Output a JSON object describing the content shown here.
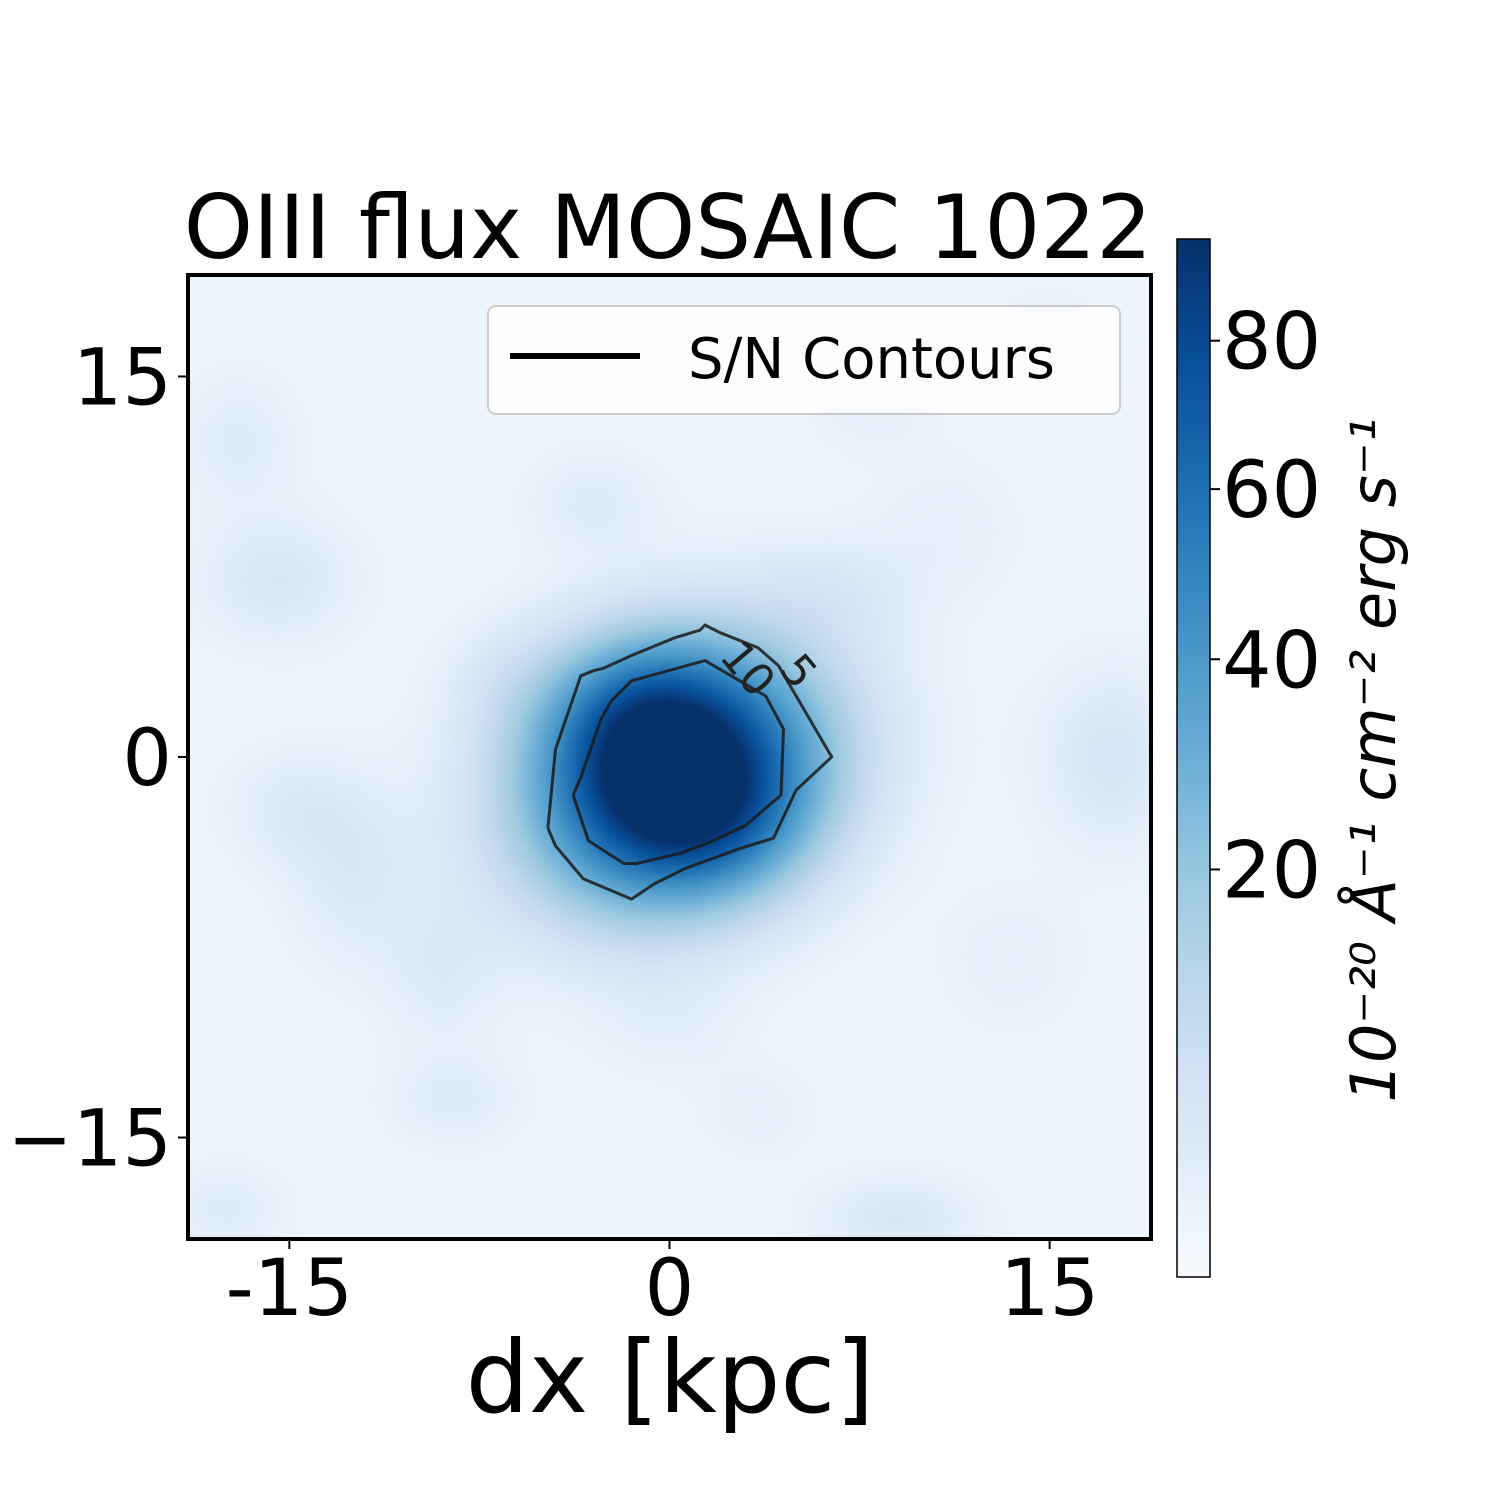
{
  "chart_data": {
    "type": "heatmap",
    "title": "OIII flux MOSAIC 1022",
    "xlabel": "dx [kpc]",
    "ylabel": "",
    "xlim": [
      -19,
      19
    ],
    "ylim": [
      -19,
      19
    ],
    "x_ticks": [
      -15,
      0,
      15
    ],
    "x_tick_labels": [
      "-15",
      "0",
      "15"
    ],
    "y_ticks": [
      -15,
      0,
      15
    ],
    "y_tick_labels": [
      "−15",
      "0",
      "15"
    ],
    "colormap": "Blues",
    "colorbar": {
      "label": "10⁻²⁰ Å⁻¹ cm⁻² erg s⁻¹",
      "ticks": [
        20,
        40,
        60,
        80
      ],
      "tick_labels": [
        "20",
        "40",
        "60",
        "80"
      ],
      "range": [
        0,
        95
      ],
      "scale": "power-norm"
    },
    "peak": {
      "x": 0.3,
      "y": -0.8,
      "value": 95
    },
    "legend": {
      "entries": [
        "S/N Contours"
      ],
      "placement": "upper-right"
    },
    "contours": [
      {
        "level": "5",
        "points": [
          [
            -4.8,
            -2.8
          ],
          [
            -4.5,
            0.3
          ],
          [
            -3.5,
            3.2
          ],
          [
            -3.0,
            3.4
          ],
          [
            -2.6,
            3.5
          ],
          [
            -1.5,
            4.0
          ],
          [
            0.2,
            4.7
          ],
          [
            1.2,
            5.0
          ],
          [
            1.4,
            5.2
          ],
          [
            2.0,
            4.9
          ],
          [
            3.5,
            4.3
          ],
          [
            4.3,
            3.6
          ],
          [
            6.4,
            0.0
          ],
          [
            5.0,
            -1.3
          ],
          [
            4.1,
            -3.2
          ],
          [
            2.8,
            -3.6
          ],
          [
            0.6,
            -4.4
          ],
          [
            -0.6,
            -5.0
          ],
          [
            -1.5,
            -5.6
          ],
          [
            -3.4,
            -4.8
          ],
          [
            -4.5,
            -3.5
          ],
          [
            -4.8,
            -2.8
          ]
        ]
      },
      {
        "level": "10",
        "points": [
          [
            -3.8,
            -1.5
          ],
          [
            -3.2,
            -3.3
          ],
          [
            -1.8,
            -4.2
          ],
          [
            -1.3,
            -4.2
          ],
          [
            0.4,
            -3.8
          ],
          [
            1.5,
            -3.4
          ],
          [
            3.0,
            -2.7
          ],
          [
            4.4,
            -1.5
          ],
          [
            4.5,
            1.1
          ],
          [
            3.8,
            2.4
          ],
          [
            1.4,
            3.8
          ],
          [
            -1.5,
            3.0
          ],
          [
            -2.3,
            2.2
          ],
          [
            -2.7,
            1.5
          ],
          [
            -3.5,
            -0.8
          ],
          [
            -3.8,
            -1.5
          ]
        ]
      }
    ],
    "contour_labels": [
      {
        "text": "10",
        "x": 3.0,
        "y": 3.4
      },
      {
        "text": "5",
        "x": 5.0,
        "y": 3.3
      }
    ],
    "blobs": [
      [
        0.3,
        -0.8,
        4.0,
        3.2,
        -25,
        1.0
      ],
      [
        -1.2,
        1.5,
        2.6,
        2.2,
        0,
        0.35
      ],
      [
        1.4,
        -2.5,
        2.6,
        2.0,
        0,
        0.25
      ],
      [
        -15.5,
        7.0,
        2.2,
        1.8,
        0,
        0.07
      ],
      [
        -12.5,
        -4.5,
        1.8,
        2.6,
        0,
        0.06
      ],
      [
        -9.0,
        -8.5,
        1.6,
        2.0,
        0,
        0.05
      ],
      [
        -15.0,
        -2.0,
        1.8,
        1.6,
        0,
        0.05
      ],
      [
        -17.0,
        12.5,
        1.6,
        1.8,
        0,
        0.05
      ],
      [
        -3.0,
        10.0,
        1.8,
        1.4,
        0,
        0.05
      ],
      [
        6.5,
        6.5,
        2.2,
        1.5,
        0,
        0.05
      ],
      [
        17.5,
        0.0,
        2.0,
        2.5,
        0,
        0.08
      ],
      [
        9.0,
        -18.2,
        2.2,
        1.2,
        0,
        0.07
      ],
      [
        -8.5,
        -13.5,
        1.8,
        1.3,
        0,
        0.05
      ],
      [
        -17.5,
        -17.8,
        1.6,
        1.2,
        0,
        0.05
      ],
      [
        3.5,
        -14.0,
        1.6,
        1.3,
        0,
        0.03
      ],
      [
        -6.5,
        3.0,
        1.6,
        1.6,
        0,
        0.04
      ],
      [
        11.0,
        9.0,
        2.0,
        2.0,
        0,
        0.03
      ],
      [
        13.5,
        -8.0,
        2.0,
        2.0,
        0,
        0.03
      ],
      [
        -4.0,
        16.0,
        2.0,
        1.2,
        0,
        0.03
      ],
      [
        8.0,
        14.0,
        1.8,
        1.5,
        0,
        0.03
      ],
      [
        0.0,
        -10.5,
        2.0,
        1.5,
        0,
        0.03
      ],
      [
        15.0,
        16.5,
        1.6,
        1.4,
        0,
        0.03
      ]
    ]
  }
}
